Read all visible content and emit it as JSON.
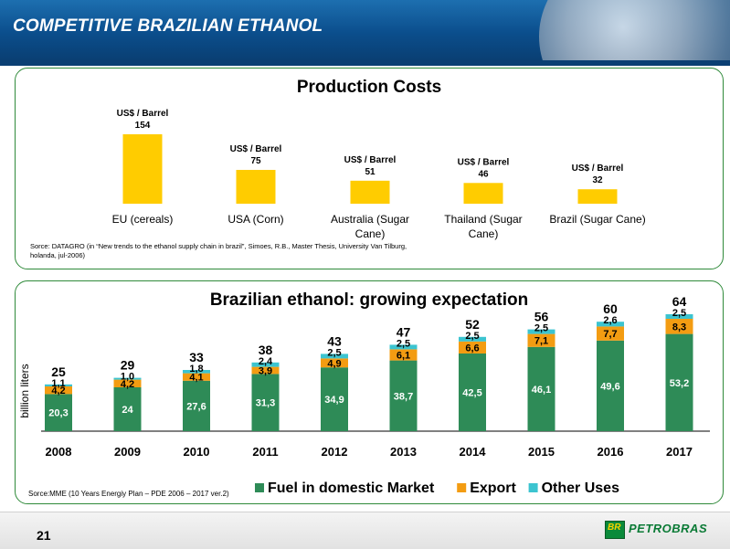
{
  "slide": {
    "title": "COMPETITIVE BRAZILIAN ETHANOL",
    "page_number": "21",
    "logo_badge": "BR",
    "logo_text": "PETROBRAS"
  },
  "chart_data": [
    {
      "type": "bar",
      "title": "Production Costs",
      "value_label": "US$ / Barrel",
      "categories": [
        "EU (cereals)",
        "USA (Corn)",
        "Australia (Sugar Cane)",
        "Thailand (Sugar Cane)",
        "Brazil (Sugar Cane)"
      ],
      "values": [
        154,
        75,
        51,
        46,
        32
      ],
      "colors": {
        "bar": "#ffcc00"
      },
      "source": "Sorce: DATAGRO (in “New trends to the ethanol supply chain in brazil”, Simoes, R.B., Master Thesis, University Van Tilburg, holanda, jul-2006)"
    },
    {
      "type": "bar",
      "stacked": true,
      "title": "Brazilian ethanol: growing expectation",
      "ylabel": "billion liters",
      "categories": [
        "2008",
        "2009",
        "2010",
        "2011",
        "2012",
        "2013",
        "2014",
        "2015",
        "2016",
        "2017"
      ],
      "totals": [
        "25",
        "29",
        "33",
        "38",
        "43",
        "47",
        "52",
        "56",
        "60",
        "64"
      ],
      "series": [
        {
          "name": "Fuel in domestic Market",
          "color": "#2e8b57",
          "values": [
            20.3,
            24,
            27.6,
            31.3,
            34.9,
            38.7,
            42.5,
            46.1,
            49.6,
            53.2
          ],
          "labels": [
            "20,3",
            "24",
            "27,6",
            "31,3",
            "34,9",
            "38,7",
            "42,5",
            "46,1",
            "49,6",
            "53,2"
          ]
        },
        {
          "name": "Export",
          "color": "#f39c12",
          "values": [
            4.2,
            4.2,
            4.1,
            3.9,
            4.9,
            6.1,
            6.6,
            7.1,
            7.7,
            8.3
          ],
          "labels": [
            "4,2",
            "4,2",
            "4,1",
            "3,9",
            "4,9",
            "6,1",
            "6,6",
            "7,1",
            "7,7",
            "8,3"
          ]
        },
        {
          "name": "Other Uses",
          "color": "#3cc4d0",
          "values": [
            1.1,
            1.0,
            1.8,
            2.4,
            2.5,
            2.5,
            2.5,
            2.5,
            2.6,
            2.5
          ],
          "labels": [
            "1,1",
            "1,0",
            "1,8",
            "2,4",
            "2,5",
            "2,5",
            "2,5",
            "2,5",
            "2,6",
            "2,5"
          ]
        }
      ],
      "source": "Sorce:MME (10 Years Energiy Plan – PDE 2006 – 2017 ver.2)"
    }
  ]
}
